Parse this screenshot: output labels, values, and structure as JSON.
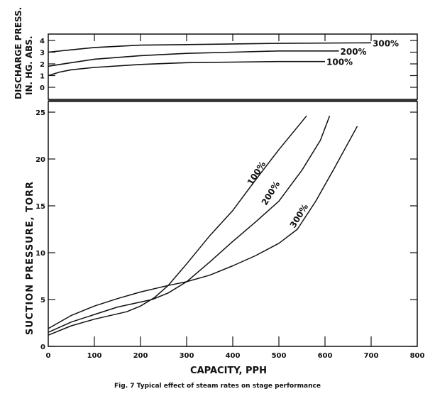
{
  "caption": "Fig. 7   Typical effect of steam rates on stage performance",
  "chart_data": [
    {
      "type": "line",
      "panel": "top",
      "xlabel": "",
      "ylabel": "DISCHARGE PRESS. IN. HG. ABS.",
      "ylabel_lines": [
        "DISCHARGE PRESS.",
        "IN. HG. ABS."
      ],
      "xlim": [
        0,
        800
      ],
      "ylim": [
        -1,
        4.5
      ],
      "yticks": [
        "0",
        "1",
        "2",
        "3",
        "4"
      ],
      "grid": false,
      "series": [
        {
          "name": "100%",
          "x": [
            0,
            25,
            50,
            100,
            200,
            300,
            400,
            500,
            600
          ],
          "y": [
            1.0,
            1.3,
            1.5,
            1.7,
            1.95,
            2.1,
            2.15,
            2.2,
            2.2
          ]
        },
        {
          "name": "200%",
          "x": [
            0,
            50,
            100,
            200,
            300,
            400,
            500,
            630
          ],
          "y": [
            1.8,
            2.1,
            2.4,
            2.7,
            2.9,
            3.0,
            3.1,
            3.1
          ]
        },
        {
          "name": "300%",
          "x": [
            0,
            50,
            100,
            200,
            300,
            400,
            500,
            700
          ],
          "y": [
            3.0,
            3.2,
            3.4,
            3.6,
            3.65,
            3.7,
            3.75,
            3.8
          ]
        }
      ]
    },
    {
      "type": "line",
      "panel": "bottom",
      "xlabel": "CAPACITY, PPH",
      "ylabel": "SUCTION PRESSURE, TORR",
      "xlim": [
        0,
        800
      ],
      "ylim": [
        0,
        26
      ],
      "xticks": [
        "0",
        "100",
        "200",
        "300",
        "400",
        "500",
        "600",
        "700",
        "800"
      ],
      "yticks": [
        "0",
        "5",
        "10",
        "15",
        "20",
        "25"
      ],
      "grid": false,
      "series": [
        {
          "name": "100%",
          "x": [
            0,
            50,
            100,
            170,
            200,
            230,
            260,
            300,
            350,
            400,
            450,
            500,
            560
          ],
          "y": [
            1.2,
            2.2,
            2.9,
            3.7,
            4.3,
            5.2,
            6.5,
            8.8,
            11.8,
            14.5,
            17.8,
            21.0,
            24.6
          ]
        },
        {
          "name": "200%",
          "x": [
            0,
            50,
            100,
            150,
            225,
            260,
            300,
            350,
            400,
            450,
            500,
            550,
            590,
            610
          ],
          "y": [
            1.5,
            2.6,
            3.4,
            4.2,
            5.0,
            5.7,
            6.9,
            9.0,
            11.2,
            13.3,
            15.5,
            18.8,
            22.0,
            24.6
          ]
        },
        {
          "name": "300%",
          "x": [
            0,
            50,
            100,
            150,
            200,
            260,
            300,
            350,
            400,
            450,
            500,
            540,
            580,
            620,
            670
          ],
          "y": [
            1.9,
            3.3,
            4.3,
            5.1,
            5.8,
            6.5,
            6.9,
            7.6,
            8.6,
            9.7,
            11.0,
            12.5,
            15.5,
            19.0,
            23.5
          ]
        }
      ]
    }
  ]
}
